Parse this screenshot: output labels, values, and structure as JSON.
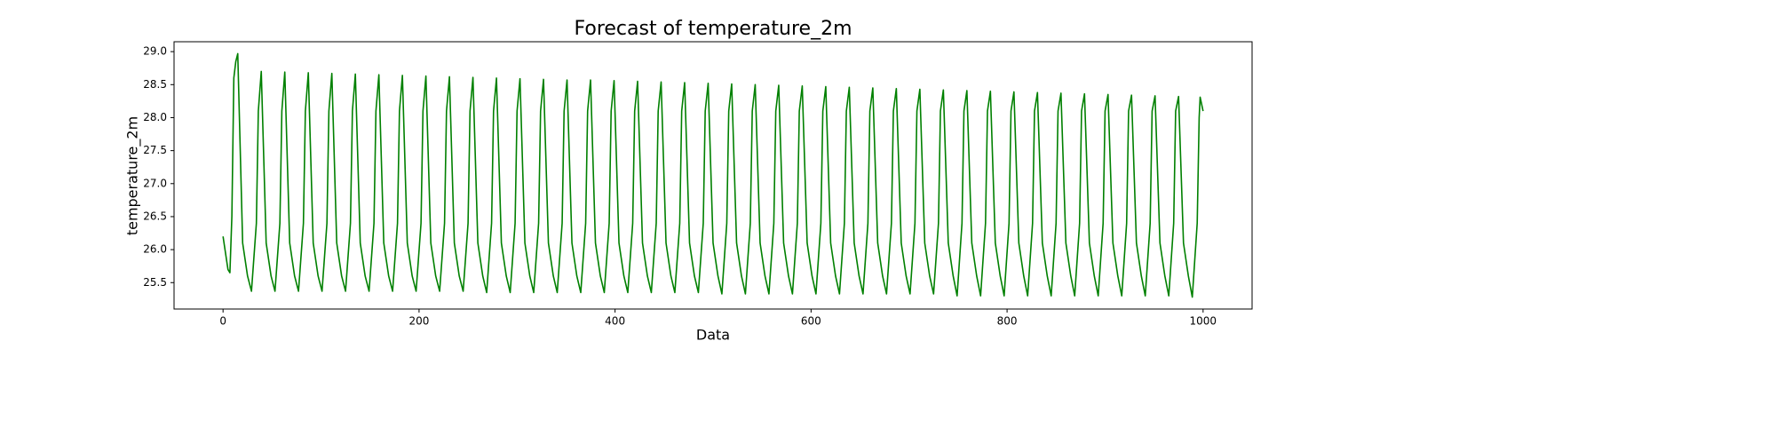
{
  "chart_data": {
    "type": "line",
    "title": "Forecast of temperature_2m",
    "xlabel": "Data",
    "ylabel": "temperature_2m",
    "xlim": [
      -50,
      1050
    ],
    "xticks": [
      0,
      200,
      400,
      600,
      800,
      1000
    ],
    "ylim": [
      25.1,
      29.15
    ],
    "yticks": [
      25.5,
      {
        "value": 26,
        "label": "26.0"
      },
      26.5,
      {
        "value": 27,
        "label": "27.0"
      },
      27.5,
      {
        "value": 28,
        "label": "28.0"
      },
      28.5,
      {
        "value": 29,
        "label": "29.0"
      }
    ],
    "grid": false,
    "x": [
      0,
      2,
      5,
      7,
      9,
      11,
      13,
      15,
      20,
      25,
      29,
      34,
      36,
      39,
      44,
      49,
      53,
      58,
      60,
      63,
      68,
      73,
      77,
      82,
      84,
      87,
      92,
      97,
      101,
      106,
      108,
      111,
      116,
      121,
      125,
      130,
      132,
      135,
      140,
      145,
      149,
      154,
      156,
      159,
      164,
      169,
      173,
      178,
      180,
      183,
      188,
      193,
      197,
      202,
      204,
      207,
      212,
      217,
      221,
      226,
      228,
      231,
      236,
      241,
      245,
      250,
      252,
      255,
      260,
      265,
      269,
      274,
      276,
      279,
      284,
      289,
      293,
      298,
      300,
      303,
      308,
      313,
      317,
      322,
      324,
      327,
      332,
      337,
      341,
      346,
      348,
      351,
      356,
      361,
      365,
      370,
      372,
      375,
      380,
      385,
      389,
      394,
      396,
      399,
      404,
      409,
      413,
      418,
      420,
      423,
      428,
      433,
      437,
      442,
      444,
      447,
      452,
      457,
      461,
      466,
      468,
      471,
      476,
      481,
      485,
      490,
      492,
      495,
      500,
      505,
      509,
      514,
      516,
      519,
      524,
      529,
      533,
      538,
      540,
      543,
      548,
      553,
      557,
      562,
      564,
      567,
      572,
      577,
      581,
      586,
      588,
      591,
      596,
      601,
      605,
      610,
      612,
      615,
      620,
      625,
      629,
      634,
      636,
      639,
      644,
      649,
      653,
      658,
      660,
      663,
      668,
      673,
      677,
      682,
      684,
      687,
      692,
      697,
      701,
      706,
      708,
      711,
      716,
      721,
      725,
      730,
      732,
      735,
      740,
      745,
      749,
      754,
      756,
      759,
      764,
      769,
      773,
      778,
      780,
      783,
      788,
      793,
      797,
      802,
      804,
      807,
      812,
      817,
      821,
      826,
      828,
      831,
      836,
      841,
      845,
      850,
      852,
      855,
      860,
      865,
      869,
      874,
      876,
      879,
      884,
      889,
      893,
      898,
      900,
      903,
      908,
      913,
      917,
      922,
      924,
      927,
      932,
      937,
      941,
      946,
      948,
      951,
      956,
      961,
      965,
      970,
      972,
      975,
      980,
      985,
      989,
      994,
      996,
      997,
      1000
    ],
    "series": [
      {
        "name": "temperature_2m",
        "color": "#008000",
        "values": [
          26.2,
          26.0,
          25.7,
          25.65,
          26.5,
          28.6,
          28.85,
          28.97,
          26.1,
          25.6,
          25.37,
          26.4,
          28.1,
          28.7,
          26.1,
          25.6,
          25.37,
          26.4,
          28.1,
          28.69,
          26.1,
          25.6,
          25.37,
          26.4,
          28.1,
          28.68,
          26.1,
          25.6,
          25.37,
          26.4,
          28.1,
          28.67,
          26.1,
          25.6,
          25.37,
          26.4,
          28.1,
          28.66,
          26.1,
          25.6,
          25.37,
          26.4,
          28.1,
          28.65,
          26.1,
          25.6,
          25.37,
          26.4,
          28.1,
          28.64,
          26.1,
          25.6,
          25.37,
          26.4,
          28.1,
          28.63,
          26.1,
          25.6,
          25.37,
          26.4,
          28.1,
          28.62,
          26.1,
          25.6,
          25.37,
          26.4,
          28.1,
          28.61,
          26.1,
          25.6,
          25.35,
          26.4,
          28.1,
          28.6,
          26.1,
          25.6,
          25.35,
          26.4,
          28.1,
          28.59,
          26.1,
          25.6,
          25.35,
          26.4,
          28.1,
          28.58,
          26.1,
          25.6,
          25.35,
          26.4,
          28.1,
          28.57,
          26.1,
          25.6,
          25.35,
          26.4,
          28.1,
          28.57,
          26.1,
          25.6,
          25.35,
          26.4,
          28.1,
          28.56,
          26.1,
          25.6,
          25.35,
          26.4,
          28.1,
          28.55,
          26.1,
          25.6,
          25.35,
          26.4,
          28.1,
          28.54,
          26.1,
          25.6,
          25.35,
          26.4,
          28.1,
          28.53,
          26.1,
          25.6,
          25.35,
          26.4,
          28.1,
          28.52,
          26.1,
          25.6,
          25.33,
          26.4,
          28.1,
          28.51,
          26.1,
          25.6,
          25.33,
          26.4,
          28.1,
          28.5,
          26.1,
          25.6,
          25.33,
          26.4,
          28.1,
          28.49,
          26.1,
          25.6,
          25.33,
          26.4,
          28.1,
          28.48,
          26.1,
          25.6,
          25.33,
          26.4,
          28.1,
          28.47,
          26.1,
          25.6,
          25.33,
          26.4,
          28.1,
          28.46,
          26.1,
          25.6,
          25.33,
          26.4,
          28.1,
          28.45,
          26.1,
          25.6,
          25.33,
          26.4,
          28.1,
          28.44,
          26.1,
          25.6,
          25.33,
          26.4,
          28.1,
          28.43,
          26.1,
          25.6,
          25.33,
          26.4,
          28.1,
          28.42,
          26.1,
          25.6,
          25.3,
          26.4,
          28.1,
          28.41,
          26.1,
          25.6,
          25.3,
          26.4,
          28.1,
          28.4,
          26.1,
          25.6,
          25.3,
          26.4,
          28.1,
          28.39,
          26.1,
          25.6,
          25.3,
          26.4,
          28.1,
          28.38,
          26.1,
          25.6,
          25.3,
          26.4,
          28.1,
          28.37,
          26.1,
          25.6,
          25.3,
          26.4,
          28.1,
          28.36,
          26.1,
          25.6,
          25.3,
          26.4,
          28.1,
          28.35,
          26.1,
          25.6,
          25.3,
          26.4,
          28.1,
          28.34,
          26.1,
          25.6,
          25.3,
          26.4,
          28.1,
          28.33,
          26.1,
          25.6,
          25.3,
          26.4,
          28.1,
          28.32,
          26.1,
          25.6,
          25.28,
          26.4,
          28.0,
          28.31,
          28.1
        ]
      }
    ]
  }
}
